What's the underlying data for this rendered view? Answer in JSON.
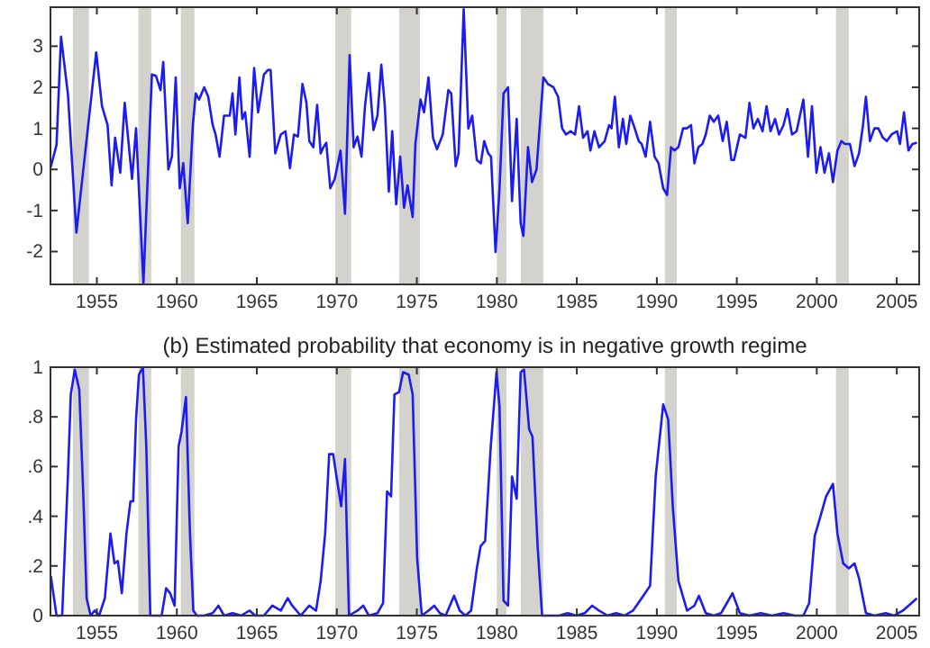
{
  "chart_data": [
    {
      "type": "line",
      "xlim": [
        1952.1,
        2006.4
      ],
      "ylim": [
        -2.8,
        3.95
      ],
      "xticks": [
        1955,
        1960,
        1965,
        1970,
        1975,
        1980,
        1985,
        1990,
        1995,
        2000,
        2005
      ],
      "yticks": [
        -2,
        -1,
        0,
        1,
        2,
        3
      ],
      "bands": [
        {
          "axis": "x",
          "from": 1953.5,
          "to": 1954.5,
          "color": "#d4d2cc"
        },
        {
          "axis": "x",
          "from": 1957.6,
          "to": 1958.4,
          "color": "#d4d2cc"
        },
        {
          "axis": "x",
          "from": 1960.25,
          "to": 1961.1,
          "color": "#d4d2cc"
        },
        {
          "axis": "x",
          "from": 1969.9,
          "to": 1970.9,
          "color": "#d4d2cc"
        },
        {
          "axis": "x",
          "from": 1973.9,
          "to": 1975.2,
          "color": "#d4d2cc"
        },
        {
          "axis": "x",
          "from": 1980.0,
          "to": 1980.6,
          "color": "#d4d2cc"
        },
        {
          "axis": "x",
          "from": 1981.5,
          "to": 1982.9,
          "color": "#d4d2cc"
        },
        {
          "axis": "x",
          "from": 1990.5,
          "to": 1991.25,
          "color": "#d4d2cc"
        },
        {
          "axis": "x",
          "from": 2001.2,
          "to": 2002.0,
          "color": "#d4d2cc"
        }
      ],
      "series": [
        {
          "color": "#1c1cf0",
          "x": [
            1952.12,
            1952.48,
            1952.76,
            1953.19,
            1953.72,
            1954.96,
            1955.32,
            1955.67,
            1955.92,
            1956.14,
            1956.46,
            1956.74,
            1957.2,
            1957.45,
            1957.91,
            1958.44,
            1958.69,
            1958.98,
            1959.15,
            1959.47,
            1959.69,
            1959.93,
            1960.18,
            1960.4,
            1960.68,
            1961.0,
            1961.18,
            1961.39,
            1961.71,
            1961.96,
            1962.24,
            1962.42,
            1962.67,
            1962.95,
            1963.31,
            1963.48,
            1963.66,
            1963.91,
            1964.09,
            1964.27,
            1964.55,
            1964.83,
            1965.08,
            1965.44,
            1965.69,
            1965.86,
            1966.15,
            1966.5,
            1966.79,
            1967.07,
            1967.32,
            1967.57,
            1967.85,
            1968.1,
            1968.28,
            1968.53,
            1968.77,
            1968.99,
            1969.16,
            1969.34,
            1969.59,
            1969.87,
            1970.23,
            1970.51,
            1970.8,
            1971.05,
            1971.29,
            1971.54,
            1971.76,
            1972.0,
            1972.29,
            1972.54,
            1972.78,
            1973.0,
            1973.25,
            1973.46,
            1973.71,
            1973.96,
            1974.2,
            1974.42,
            1974.74,
            1974.91,
            1975.23,
            1975.45,
            1975.73,
            1976.01,
            1976.26,
            1976.62,
            1976.97,
            1977.15,
            1977.43,
            1977.61,
            1977.93,
            1978.22,
            1978.46,
            1978.75,
            1979.0,
            1979.21,
            1979.46,
            1979.64,
            1979.92,
            1980.17,
            1980.42,
            1980.7,
            1980.95,
            1981.24,
            1981.49,
            1981.66,
            1981.95,
            1982.2,
            1982.48,
            1982.91,
            1983.19,
            1983.54,
            1983.83,
            1984.08,
            1984.33,
            1984.61,
            1984.89,
            1985.14,
            1985.39,
            1985.67,
            1985.85,
            1986.1,
            1986.39,
            1986.74,
            1987.02,
            1987.17,
            1987.38,
            1987.63,
            1987.88,
            1988.09,
            1988.34,
            1988.62,
            1988.87,
            1989.05,
            1989.3,
            1989.58,
            1989.86,
            1990.11,
            1990.4,
            1990.64,
            1990.89,
            1991.11,
            1991.35,
            1991.64,
            1991.89,
            1992.14,
            1992.35,
            1992.6,
            1992.85,
            1993.06,
            1993.31,
            1993.56,
            1993.84,
            1994.12,
            1994.37,
            1994.66,
            1994.83,
            1995.19,
            1995.54,
            1995.79,
            1996.04,
            1996.32,
            1996.61,
            1996.86,
            1997.11,
            1997.39,
            1997.64,
            1997.92,
            1998.17,
            1998.45,
            1998.74,
            1999.16,
            1999.45,
            1999.7,
            1999.98,
            2000.23,
            2000.48,
            2000.76,
            2001.01,
            2001.29,
            2001.54,
            2001.76,
            2002.07,
            2002.36,
            2002.64,
            2002.89,
            2003.07,
            2003.32,
            2003.6,
            2003.85,
            2004.13,
            2004.38,
            2004.67,
            2005.02,
            2005.2,
            2005.45,
            2005.73,
            2005.98,
            2006.26
          ],
          "values": [
            0.06,
            0.6,
            3.23,
            1.84,
            -1.54,
            2.85,
            1.54,
            1.08,
            -0.39,
            0.77,
            -0.08,
            1.62,
            -0.23,
            1.0,
            -2.78,
            2.31,
            2.28,
            1.93,
            2.62,
            0,
            0.31,
            2.24,
            -0.46,
            0.15,
            -1.31,
            1.08,
            1.85,
            1.7,
            2.0,
            1.77,
            1.08,
            0.85,
            0.31,
            1.31,
            1.31,
            1.85,
            0.85,
            2.24,
            1.23,
            1.39,
            0.31,
            2.47,
            1.39,
            2.31,
            2.42,
            2.42,
            0.39,
            0.85,
            0.93,
            0.03,
            0.85,
            0.8,
            2.08,
            1.62,
            0.69,
            0.54,
            1.57,
            0.39,
            0.54,
            0.65,
            -0.46,
            -0.23,
            0.46,
            -1.08,
            2.78,
            0.54,
            0.8,
            0.31,
            1.54,
            2.35,
            0.96,
            1.31,
            2.55,
            1.54,
            -0.54,
            0.93,
            -0.85,
            0.31,
            -0.93,
            -0.39,
            -1.16,
            0.62,
            1.7,
            1.39,
            2.24,
            0.77,
            0.49,
            0.85,
            1.93,
            1.85,
            0.08,
            0.39,
            3.9,
            1.0,
            1.31,
            0.23,
            0.15,
            0.69,
            0.39,
            0.31,
            -2.01,
            -0.46,
            1.85,
            2.0,
            -0.77,
            1.23,
            -1.31,
            -1.62,
            0.54,
            -0.31,
            0,
            2.24,
            2.08,
            2.0,
            1.77,
            1.0,
            0.85,
            0.93,
            0.85,
            1.54,
            0.77,
            0.93,
            0.46,
            0.93,
            0.54,
            0.69,
            1.08,
            1.0,
            1.77,
            0.54,
            1.23,
            0.62,
            1.31,
            1.0,
            0.69,
            0.62,
            0.31,
            1.16,
            0.31,
            0.15,
            -0.46,
            -0.62,
            0.54,
            0.46,
            0.54,
            1.0,
            1.0,
            1.08,
            0.15,
            0.54,
            0.62,
            0.85,
            1.31,
            1.16,
            1.31,
            0.69,
            1.16,
            0.23,
            0.23,
            0.85,
            0.77,
            1.62,
            1.0,
            1.23,
            0.93,
            1.54,
            0.93,
            1.23,
            0.85,
            1.08,
            1.47,
            0.85,
            0.93,
            1.7,
            0.31,
            1.54,
            -0.08,
            0.54,
            -0.08,
            0.39,
            -0.31,
            0.46,
            0.69,
            0.62,
            0.62,
            0.08,
            0.39,
            1.08,
            1.77,
            0.69,
            1.0,
            1.0,
            0.77,
            0.69,
            0.85,
            0.93,
            0.62,
            1.39,
            0.46,
            0.62,
            0.65
          ]
        }
      ]
    },
    {
      "type": "line",
      "title": "(b) Estimated probability that economy is in negative growth regime",
      "xlim": [
        1952.1,
        2006.4
      ],
      "ylim": [
        0,
        1
      ],
      "xticks": [
        1955,
        1960,
        1965,
        1970,
        1975,
        1980,
        1985,
        1990,
        1995,
        2000,
        2005
      ],
      "yticks": [
        0,
        {
          "value": 0.2,
          "label": ".2"
        },
        {
          "value": 0.4,
          "label": ".4"
        },
        {
          "value": 0.6,
          "label": ".6"
        },
        {
          "value": 0.8,
          "label": ".8"
        },
        1
      ],
      "bands": [
        {
          "axis": "x",
          "from": 1953.5,
          "to": 1954.5,
          "color": "#d4d2cc"
        },
        {
          "axis": "x",
          "from": 1957.6,
          "to": 1958.4,
          "color": "#d4d2cc"
        },
        {
          "axis": "x",
          "from": 1960.25,
          "to": 1961.1,
          "color": "#d4d2cc"
        },
        {
          "axis": "x",
          "from": 1969.9,
          "to": 1970.9,
          "color": "#d4d2cc"
        },
        {
          "axis": "x",
          "from": 1973.9,
          "to": 1975.2,
          "color": "#d4d2cc"
        },
        {
          "axis": "x",
          "from": 1980.0,
          "to": 1980.6,
          "color": "#d4d2cc"
        },
        {
          "axis": "x",
          "from": 1981.5,
          "to": 1982.9,
          "color": "#d4d2cc"
        },
        {
          "axis": "x",
          "from": 1990.5,
          "to": 1991.25,
          "color": "#d4d2cc"
        },
        {
          "axis": "x",
          "from": 2001.2,
          "to": 2002.0,
          "color": "#d4d2cc"
        }
      ],
      "series": [
        {
          "color": "#1c1cf0",
          "x": [
            1952.12,
            1952.48,
            1952.83,
            1953.19,
            1953.37,
            1953.62,
            1953.9,
            1954.15,
            1954.36,
            1954.61,
            1954.86,
            1955.14,
            1955.5,
            1955.85,
            1956.1,
            1956.31,
            1956.56,
            1956.85,
            1957.1,
            1957.27,
            1957.45,
            1957.63,
            1957.88,
            1958.09,
            1958.34,
            1958.69,
            1959.05,
            1959.33,
            1959.58,
            1959.86,
            1960.11,
            1960.29,
            1960.57,
            1960.82,
            1961.03,
            1961.25,
            1961.71,
            1962.24,
            1962.6,
            1962.95,
            1963.48,
            1964.02,
            1964.55,
            1964.9,
            1965.44,
            1965.97,
            1966.5,
            1966.93,
            1967.21,
            1967.74,
            1968.28,
            1968.7,
            1968.99,
            1969.27,
            1969.52,
            1969.77,
            1969.98,
            1970.27,
            1970.51,
            1970.76,
            1971.29,
            1971.65,
            1972.0,
            1972.54,
            1972.89,
            1973.14,
            1973.39,
            1973.6,
            1973.89,
            1974.14,
            1974.49,
            1974.74,
            1975.02,
            1975.31,
            1975.73,
            1976.09,
            1976.44,
            1976.8,
            1977.33,
            1977.68,
            1978.04,
            1978.39,
            1978.75,
            1978.99,
            1979.27,
            1979.62,
            1979.98,
            1980.17,
            1980.42,
            1980.7,
            1980.95,
            1981.24,
            1981.49,
            1981.7,
            1982.02,
            1982.23,
            1982.55,
            1982.83,
            1983.37,
            1983.9,
            1984.43,
            1984.97,
            1985.5,
            1985.96,
            1986.39,
            1986.92,
            1987.45,
            1987.98,
            1988.51,
            1989.05,
            1989.58,
            1989.93,
            1990.4,
            1990.71,
            1991.0,
            1991.35,
            1991.89,
            1992.35,
            1992.63,
            1993.06,
            1993.56,
            1994.02,
            1994.73,
            1995.19,
            1995.79,
            1996.5,
            1997.21,
            1997.92,
            1998.63,
            1999.16,
            1999.52,
            1999.87,
            2000.23,
            2000.58,
            2001.01,
            2001.29,
            2001.65,
            2002.0,
            2002.36,
            2002.64,
            2003.07,
            2003.6,
            2004.31,
            2004.84,
            2005.38,
            2005.91,
            2006.26
          ],
          "values": [
            0.16,
            0,
            0,
            0.56,
            0.89,
            0.99,
            0.91,
            0.49,
            0.07,
            0,
            0.02,
            0,
            0.07,
            0.33,
            0.21,
            0.22,
            0.09,
            0.33,
            0.46,
            0.46,
            0.79,
            0.97,
            1.0,
            0.68,
            0,
            0,
            0,
            0.11,
            0.09,
            0.04,
            0.68,
            0.74,
            0.88,
            0.33,
            0.02,
            0,
            0,
            0.01,
            0.04,
            0,
            0.01,
            0,
            0.02,
            0,
            0,
            0.04,
            0.02,
            0.07,
            0.04,
            0,
            0.04,
            0.02,
            0.14,
            0.33,
            0.65,
            0.65,
            0.56,
            0.44,
            0.63,
            0,
            0.02,
            0.04,
            0,
            0.01,
            0.05,
            0.5,
            0.48,
            0.89,
            0.9,
            0.98,
            0.97,
            0.89,
            0.23,
            0,
            0.02,
            0.04,
            0.01,
            0,
            0.08,
            0.02,
            0,
            0.02,
            0.19,
            0.28,
            0.3,
            0.68,
            0.98,
            0.84,
            0.06,
            0.04,
            0.56,
            0.47,
            0.98,
            0.99,
            0.75,
            0.72,
            0.28,
            0,
            0,
            0,
            0.01,
            0,
            0.01,
            0.04,
            0.02,
            0,
            0.01,
            0,
            0.02,
            0.07,
            0.12,
            0.56,
            0.85,
            0.79,
            0.44,
            0.14,
            0.02,
            0.04,
            0.08,
            0.01,
            0,
            0.01,
            0.09,
            0.01,
            0,
            0.01,
            0,
            0.01,
            0,
            0,
            0.05,
            0.32,
            0.4,
            0.48,
            0.53,
            0.33,
            0.21,
            0.19,
            0.21,
            0.15,
            0.01,
            0,
            0.01,
            0,
            0.02,
            0.05,
            0.07
          ]
        }
      ]
    }
  ]
}
